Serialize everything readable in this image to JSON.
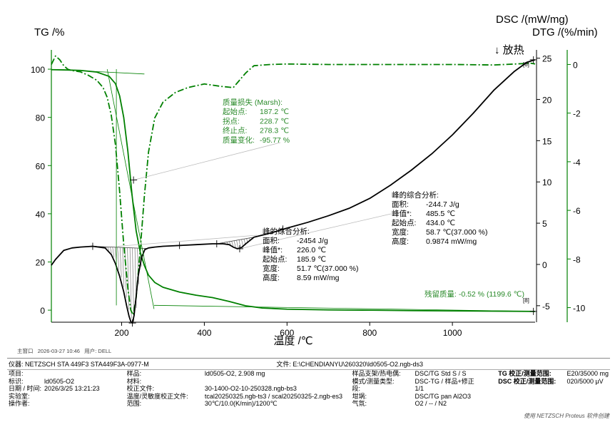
{
  "chart_data": {
    "type": "line",
    "title": "",
    "xlabel": "温度 /℃",
    "y_left_label": "TG /%",
    "y_right1_label": "DSC /(mW/mg)",
    "y_right2_label": "DTG /(%/min)",
    "exo_label": "↓ 放热",
    "xlim": [
      30,
      1200
    ],
    "tg_lim": [
      -5,
      108
    ],
    "dsc_lim": [
      -7,
      26
    ],
    "dtg_lim": [
      -10.6,
      0.6
    ],
    "x_ticks": [
      200,
      400,
      600,
      800,
      1000
    ],
    "tg_ticks": [
      0,
      20,
      40,
      60,
      80,
      100
    ],
    "dsc_ticks": [
      -5,
      0,
      5,
      10,
      15,
      20,
      25
    ],
    "dtg_ticks": [
      -10,
      -8,
      -6,
      -4,
      -2,
      0
    ],
    "colors": {
      "tg": "#008000",
      "dsc": "#000000",
      "dtg": "#008000",
      "hatch": "#666666"
    },
    "series": [
      {
        "name": "TG",
        "axis": "left",
        "x": [
          30,
          60,
          100,
          140,
          170,
          185,
          195,
          205,
          215,
          225,
          235,
          245,
          255,
          265,
          280,
          300,
          340,
          380,
          420,
          460,
          500,
          540,
          600,
          700,
          800,
          900,
          1000,
          1100,
          1200
        ],
        "y": [
          99.8,
          99.7,
          99.5,
          98.8,
          97,
          94,
          89,
          80,
          66,
          48,
          33,
          24,
          18.5,
          14.5,
          11.5,
          9.5,
          7.5,
          6.2,
          5.2,
          3.6,
          1.8,
          0.9,
          0.4,
          0.1,
          0,
          -0.2,
          -0.3,
          -0.4,
          -0.52
        ]
      },
      {
        "name": "DTG",
        "axis": "right2",
        "style": "dashdot",
        "x": [
          30,
          40,
          50,
          60,
          70,
          80,
          100,
          120,
          140,
          155,
          165,
          175,
          185,
          195,
          205,
          215,
          222,
          228,
          235,
          245,
          255,
          265,
          280,
          300,
          330,
          360,
          400,
          440,
          470,
          500,
          520,
          560,
          600,
          700,
          800,
          900,
          1000,
          1100,
          1190,
          1200
        ],
        "y": [
          0,
          0.35,
          0.2,
          -0.05,
          -0.2,
          -0.25,
          -0.3,
          -0.45,
          -0.65,
          -0.95,
          -1.35,
          -2.1,
          -3.3,
          -5.2,
          -7.4,
          -9.2,
          -10.1,
          -10.3,
          -9.6,
          -7.6,
          -5.4,
          -3.6,
          -2.2,
          -1.55,
          -1.15,
          -0.95,
          -0.8,
          -0.9,
          -0.95,
          -0.35,
          -0.05,
          0,
          0.02,
          0,
          0,
          0,
          0,
          -0.02,
          0.05,
          0.02
        ]
      },
      {
        "name": "DSC",
        "axis": "right1",
        "x": [
          30,
          40,
          60,
          80,
          100,
          130,
          160,
          175,
          185,
          195,
          205,
          212,
          218,
          222,
          226,
          230,
          235,
          240,
          248,
          256,
          265,
          280,
          300,
          340,
          380,
          420,
          445,
          460,
          470,
          480,
          490,
          500,
          520,
          560,
          600,
          650,
          700,
          750,
          800,
          850,
          900,
          950,
          1000,
          1050,
          1100,
          1150,
          1180,
          1200
        ],
        "y": [
          -0.1,
          0.6,
          1.7,
          2.0,
          2.1,
          2.2,
          2.0,
          1.2,
          0.1,
          -1.4,
          -3.3,
          -5.0,
          -6.3,
          -6.9,
          -7.1,
          -6.2,
          -3.9,
          -1.4,
          0.8,
          1.8,
          2.0,
          2.1,
          2.2,
          2.3,
          2.4,
          2.5,
          2.5,
          2.4,
          2.1,
          1.9,
          2.05,
          2.5,
          3.3,
          3.8,
          4.4,
          5.1,
          5.9,
          6.8,
          8.0,
          9.6,
          11.4,
          13.4,
          15.7,
          18.3,
          21.1,
          23.4,
          24.5,
          24.8
        ]
      }
    ],
    "annotations": {
      "mass_loss": {
        "title": "质量损失 (Marsh):",
        "rows": [
          {
            "label": "起始点:",
            "value": "187.2 ℃"
          },
          {
            "label": "拐点:",
            "value": "228.7 ℃"
          },
          {
            "label": "终止点:",
            "value": "278.3 ℃"
          },
          {
            "label": "质量变化:",
            "value": "-95.77 %"
          }
        ]
      },
      "peak_low": {
        "title": "峰的综合分析:",
        "rows": [
          {
            "label": "面积:",
            "value": "-2454 J/g"
          },
          {
            "label": "峰值*:",
            "value": "226.0 ℃"
          },
          {
            "label": "起始点:",
            "value": "185.9 ℃"
          },
          {
            "label": "宽度:",
            "value": "51.7 ℃(37.000 %)"
          },
          {
            "label": "高度:",
            "value": "8.59 mW/mg"
          }
        ]
      },
      "peak_high": {
        "title": "峰的综合分析:",
        "rows": [
          {
            "label": "面积:",
            "value": "-244.7 J/g"
          },
          {
            "label": "峰值*:",
            "value": "485.5 ℃"
          },
          {
            "label": "起始点:",
            "value": "434.0 ℃"
          },
          {
            "label": "宽度:",
            "value": "58.7 ℃(37.000 %)"
          },
          {
            "label": "高度:",
            "value": "0.9874 mW/mg"
          }
        ]
      },
      "residual": "残留质量: -0.52 % (1199.6 ℃)",
      "end_tag": "[8]"
    }
  },
  "meta_line": {
    "window": "主窗口",
    "datetime": "2026-03-27 10:46",
    "user": "用户: DELL"
  },
  "info_header": {
    "instrument": "仪器: NETZSCH STA 449F3 STA449F3A-0977-M",
    "file": "文件: E:\\CHENDIANYU\\260320\\ld0505-O2.ngb-ds3"
  },
  "info_rows": [
    [
      "项目:",
      "",
      "样品:",
      "ld0505-O2, 2.908 mg",
      "样品支架/热电偶:",
      "DSC/TG Std S / S",
      "TG 校正/测量范围:",
      "E20/35000 mg"
    ],
    [
      "标识:",
      "ld0505-O2",
      "材料:",
      "",
      "模式/测量类型:",
      "DSC-TG / 样品+修正",
      "DSC 校正/测量范围:",
      "020/5000 μV"
    ],
    [
      "日期 / 时间:",
      "2026/3/25 13:21:23",
      "校正文件:",
      "30-1400-O2-10-250328.ngb-bs3",
      "段:",
      "1/1",
      "",
      ""
    ],
    [
      "实验室:",
      "",
      "温度/灵敏度校正文件:",
      "tcal20250325.ngb-ts3 / scal20250325-2.ngb-es3",
      "坩埚:",
      "DSC/TG pan Al2O3",
      "",
      ""
    ],
    [
      "操作者:",
      "",
      "范围:",
      "30℃/10.0(K/min)/1200℃",
      "气氛:",
      "O2 / -- / N2",
      "",
      ""
    ]
  ],
  "footer": "使用 NETZSCH Proteus 软件创建"
}
